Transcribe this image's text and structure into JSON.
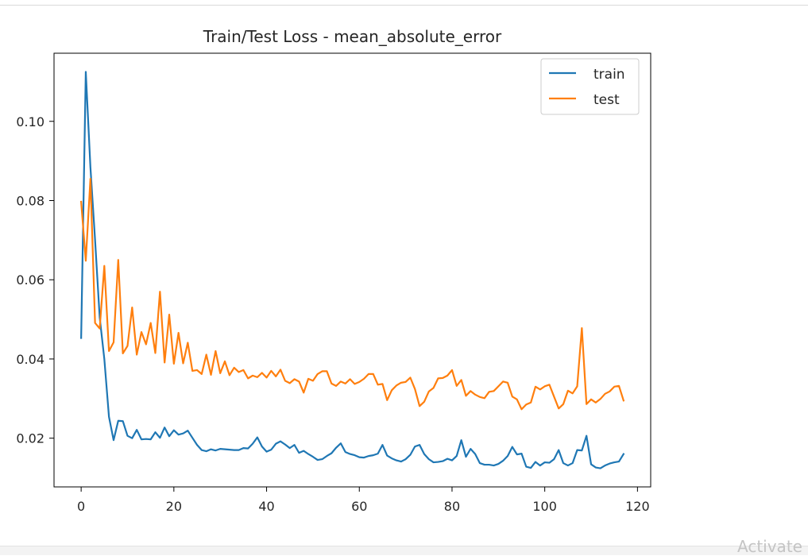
{
  "chart_data": {
    "type": "line",
    "title": "Train/Test Loss - mean_absolute_error",
    "xlabel": "",
    "ylabel": "",
    "xlim": [
      -5.85,
      122.85
    ],
    "ylim": [
      0.0077,
      0.1172
    ],
    "x_ticks": [
      0,
      20,
      40,
      60,
      80,
      100,
      120
    ],
    "y_ticks": [
      0.02,
      0.04,
      0.06,
      0.08,
      0.1
    ],
    "x_tick_labels": [
      "0",
      "20",
      "40",
      "60",
      "80",
      "100",
      "120"
    ],
    "y_tick_labels": [
      "0.02",
      "0.04",
      "0.06",
      "0.08",
      "0.10"
    ],
    "grid": false,
    "legend_position": "upper right",
    "series": [
      {
        "name": "train",
        "color": "#1f77b4",
        "values": [
          0.0453,
          0.1125,
          0.0884,
          0.0701,
          0.0505,
          0.04,
          0.0254,
          0.0195,
          0.0244,
          0.0243,
          0.0206,
          0.02,
          0.0221,
          0.0197,
          0.0198,
          0.0197,
          0.0215,
          0.0201,
          0.0227,
          0.0205,
          0.022,
          0.0209,
          0.0212,
          0.0219,
          0.0201,
          0.0183,
          0.017,
          0.0167,
          0.0172,
          0.0169,
          0.0173,
          0.0172,
          0.0171,
          0.017,
          0.017,
          0.0175,
          0.0174,
          0.0186,
          0.0202,
          0.0179,
          0.0166,
          0.0171,
          0.0186,
          0.0192,
          0.0184,
          0.0175,
          0.0183,
          0.0163,
          0.0168,
          0.016,
          0.0153,
          0.0145,
          0.0147,
          0.0155,
          0.0162,
          0.0176,
          0.0187,
          0.0165,
          0.016,
          0.0157,
          0.0152,
          0.0151,
          0.0155,
          0.0157,
          0.0161,
          0.0183,
          0.0156,
          0.0149,
          0.0144,
          0.0141,
          0.0147,
          0.0158,
          0.0179,
          0.0183,
          0.016,
          0.0147,
          0.0139,
          0.014,
          0.0142,
          0.0148,
          0.0144,
          0.0155,
          0.0195,
          0.0153,
          0.0173,
          0.016,
          0.0137,
          0.0133,
          0.0133,
          0.0131,
          0.0135,
          0.0143,
          0.0155,
          0.0178,
          0.0159,
          0.0161,
          0.0128,
          0.0125,
          0.014,
          0.0131,
          0.0139,
          0.0138,
          0.0147,
          0.017,
          0.0137,
          0.0131,
          0.0137,
          0.017,
          0.0169,
          0.0206,
          0.0134,
          0.0126,
          0.0124,
          0.0131,
          0.0136,
          0.0139,
          0.0141,
          0.016
        ]
      },
      {
        "name": "test",
        "color": "#ff7f0e",
        "values": [
          0.0797,
          0.0648,
          0.0855,
          0.0491,
          0.0477,
          0.0635,
          0.042,
          0.0442,
          0.065,
          0.0414,
          0.0433,
          0.053,
          0.0411,
          0.0468,
          0.0437,
          0.0491,
          0.0415,
          0.057,
          0.0391,
          0.0512,
          0.0388,
          0.0466,
          0.0389,
          0.0441,
          0.037,
          0.0372,
          0.0362,
          0.0411,
          0.036,
          0.042,
          0.0364,
          0.0394,
          0.0359,
          0.0378,
          0.0367,
          0.0372,
          0.0351,
          0.0358,
          0.0354,
          0.0365,
          0.0353,
          0.037,
          0.0356,
          0.0373,
          0.0345,
          0.0339,
          0.0349,
          0.0343,
          0.0315,
          0.035,
          0.0345,
          0.0362,
          0.0369,
          0.0369,
          0.0338,
          0.0332,
          0.0343,
          0.0338,
          0.0349,
          0.0337,
          0.0342,
          0.035,
          0.0362,
          0.0362,
          0.0335,
          0.0337,
          0.0296,
          0.0321,
          0.0333,
          0.034,
          0.0342,
          0.0353,
          0.0324,
          0.0281,
          0.0292,
          0.0318,
          0.0327,
          0.0351,
          0.0352,
          0.0358,
          0.0372,
          0.0332,
          0.0347,
          0.0307,
          0.0319,
          0.031,
          0.0304,
          0.0301,
          0.0317,
          0.0319,
          0.0331,
          0.0343,
          0.034,
          0.0305,
          0.0298,
          0.0273,
          0.0285,
          0.029,
          0.033,
          0.0323,
          0.0331,
          0.0335,
          0.0305,
          0.0275,
          0.0286,
          0.032,
          0.0313,
          0.0331,
          0.0478,
          0.0286,
          0.0298,
          0.029,
          0.0299,
          0.0312,
          0.0318,
          0.033,
          0.0332,
          0.0295
        ]
      }
    ]
  },
  "overlay": {
    "watermark": "Activate"
  }
}
